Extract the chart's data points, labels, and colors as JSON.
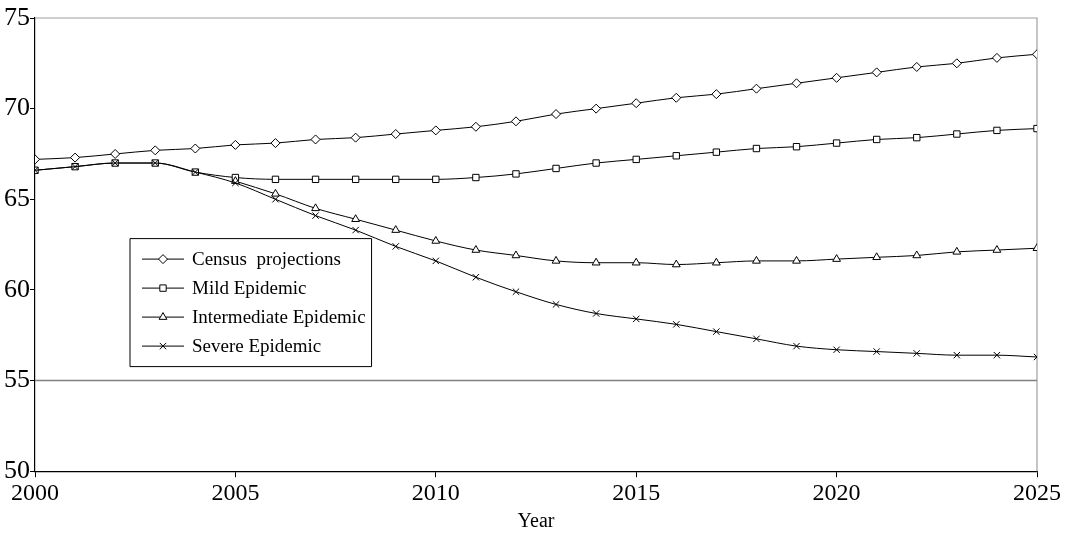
{
  "chart_data": {
    "type": "line",
    "xlabel": "Year",
    "x": [
      2000,
      2001,
      2002,
      2003,
      2004,
      2005,
      2006,
      2007,
      2008,
      2009,
      2010,
      2011,
      2012,
      2013,
      2014,
      2015,
      2016,
      2017,
      2018,
      2019,
      2020,
      2021,
      2022,
      2023,
      2024,
      2025
    ],
    "series": [
      {
        "name": "Census  projections",
        "color": "#000000",
        "marker": "diamond",
        "values": [
          67.2,
          67.3,
          67.5,
          67.7,
          67.8,
          68.0,
          68.1,
          68.3,
          68.4,
          68.6,
          68.8,
          69.0,
          69.3,
          69.7,
          70.0,
          70.3,
          70.6,
          70.8,
          71.1,
          71.4,
          71.7,
          72.0,
          72.3,
          72.5,
          72.8,
          73.0
        ]
      },
      {
        "name": "Mild Epidemic",
        "color": "#000000",
        "marker": "square",
        "values": [
          66.6,
          66.8,
          67.0,
          67.0,
          66.5,
          66.2,
          66.1,
          66.1,
          66.1,
          66.1,
          66.1,
          66.2,
          66.4,
          66.7,
          67.0,
          67.2,
          67.4,
          67.6,
          67.8,
          67.9,
          68.1,
          68.3,
          68.4,
          68.6,
          68.8,
          68.9
        ]
      },
      {
        "name": "Intermediate Epidemic",
        "color": "#000000",
        "marker": "triangle",
        "values": [
          null,
          null,
          null,
          null,
          null,
          66.0,
          65.3,
          64.5,
          63.9,
          63.3,
          62.7,
          62.2,
          61.9,
          61.6,
          61.5,
          61.5,
          61.4,
          61.5,
          61.6,
          61.6,
          61.7,
          61.8,
          61.9,
          62.1,
          62.2,
          62.3
        ]
      },
      {
        "name": "Severe Epidemic",
        "color": "#000000",
        "marker": "cross",
        "values": [
          66.6,
          66.8,
          67.0,
          67.0,
          66.5,
          65.9,
          65.0,
          64.1,
          63.3,
          62.4,
          61.6,
          60.7,
          59.9,
          59.2,
          58.7,
          58.4,
          58.1,
          57.7,
          57.3,
          56.9,
          56.7,
          56.6,
          56.5,
          56.4,
          56.4,
          56.3
        ]
      }
    ],
    "xlim": [
      2000,
      2025
    ],
    "xticks": [
      2000,
      2005,
      2010,
      2015,
      2020,
      2025
    ],
    "ylim": [
      50,
      75
    ],
    "yticks": [
      50,
      55,
      60,
      65,
      70,
      75
    ],
    "ref_lines": [
      {
        "axis": "y",
        "value": 55,
        "color": "#808080"
      }
    ],
    "grid": false,
    "legend": "center left",
    "line_style": "solid"
  }
}
